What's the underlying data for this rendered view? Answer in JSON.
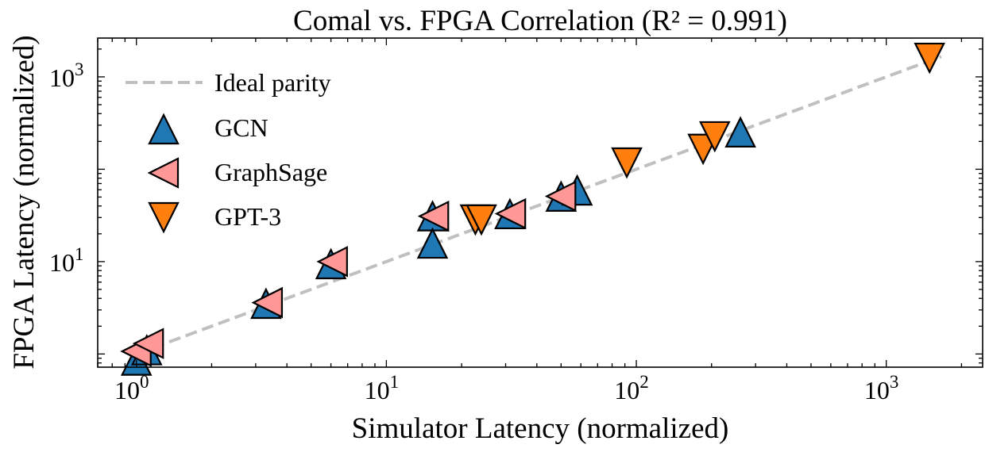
{
  "chart_data": {
    "type": "scatter",
    "title": "Comal vs. FPGA Correlation (R² = 0.991)",
    "xlabel": "Simulator Latency (normalized)",
    "ylabel": "FPGA Latency (normalized)",
    "xscale": "log",
    "yscale": "log",
    "xlim": [
      0.7,
      2430
    ],
    "ylim": [
      0.72,
      2630
    ],
    "x_ticks": [
      {
        "value": 1,
        "base": "10",
        "exp": "0"
      },
      {
        "value": 10,
        "base": "10",
        "exp": "1"
      },
      {
        "value": 100,
        "base": "10",
        "exp": "2"
      },
      {
        "value": 1000,
        "base": "10",
        "exp": "3"
      }
    ],
    "y_ticks": [
      {
        "value": 10,
        "base": "10",
        "exp": "1"
      },
      {
        "value": 1000,
        "base": "10",
        "exp": "3"
      }
    ],
    "grid": false,
    "legend_placement": "top-left",
    "reference_line": {
      "name": "Ideal parity",
      "x": [
        1,
        1660
      ],
      "y": [
        1,
        1660
      ],
      "color": "#c0c0c0",
      "style": "dashed"
    },
    "series": [
      {
        "name": "GCN",
        "marker": "triangle-up",
        "color": "#1f77b4",
        "points": [
          [
            1.0,
            0.85
          ],
          [
            1.1,
            1.1
          ],
          [
            3.3,
            3.5
          ],
          [
            6.0,
            9.4
          ],
          [
            15.3,
            31
          ],
          [
            15.3,
            15.7
          ],
          [
            31.2,
            32.7
          ],
          [
            50,
            50.6
          ],
          [
            58,
            59
          ],
          [
            261,
            251
          ]
        ]
      },
      {
        "name": "GraphSage",
        "marker": "triangle-left",
        "color": "#ff9896",
        "points": [
          [
            1.0,
            1.07
          ],
          [
            1.12,
            1.3
          ],
          [
            3.35,
            3.6
          ],
          [
            6.1,
            10
          ],
          [
            15.5,
            31
          ],
          [
            31.5,
            33
          ],
          [
            50,
            51
          ]
        ]
      },
      {
        "name": "GPT-3",
        "marker": "triangle-down",
        "color": "#ff7f0e",
        "points": [
          [
            22.7,
            28.5
          ],
          [
            24,
            28.5
          ],
          [
            91.6,
            118
          ],
          [
            185,
            166
          ],
          [
            206,
            227
          ],
          [
            1490,
            1607
          ]
        ]
      }
    ]
  }
}
